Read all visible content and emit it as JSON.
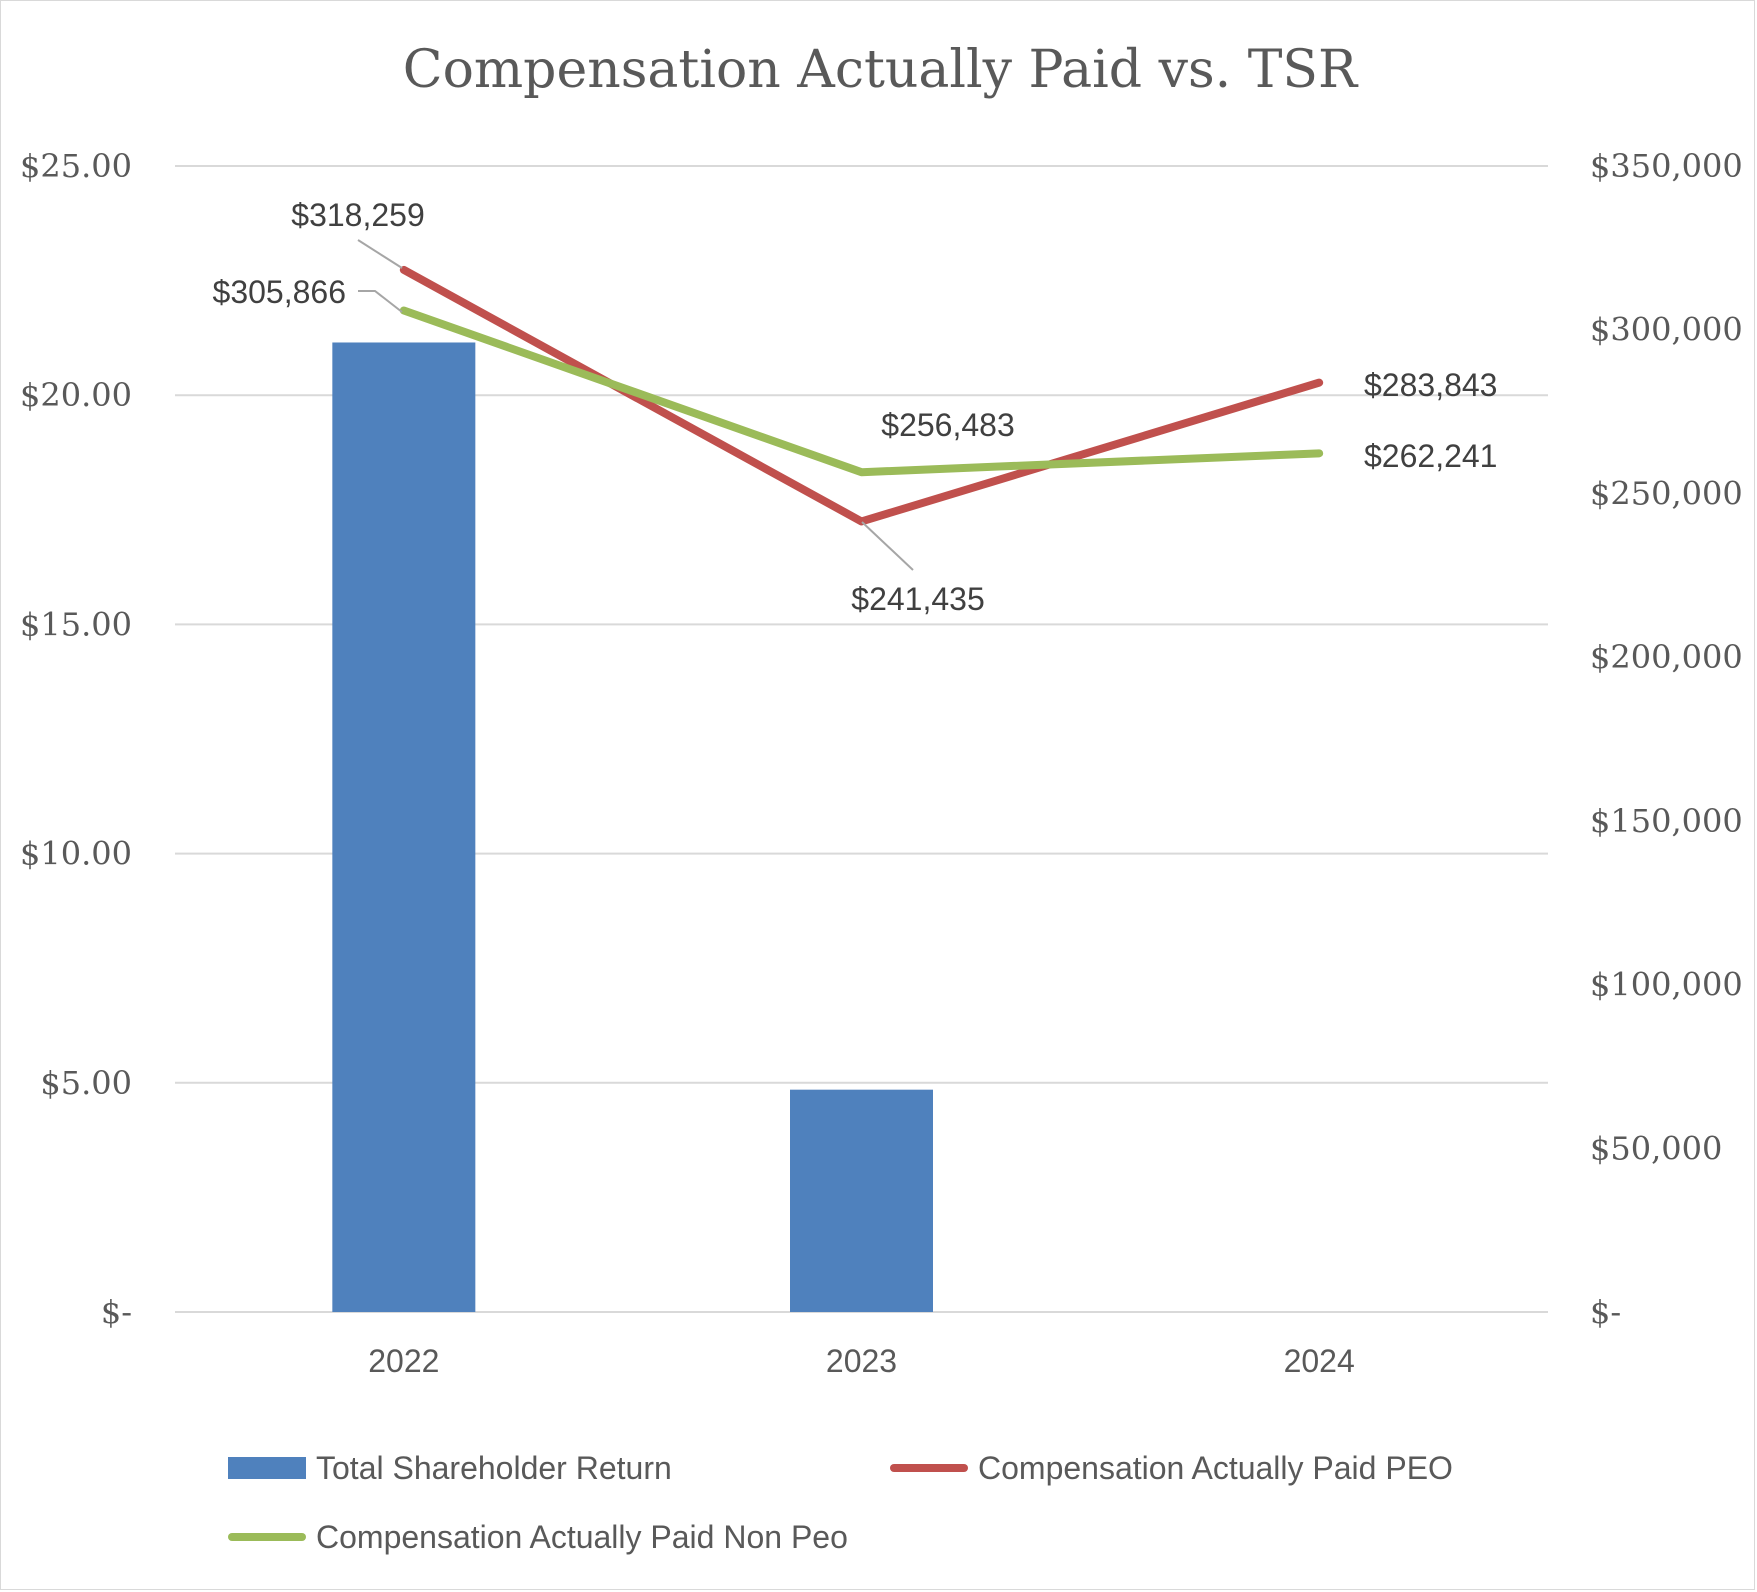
{
  "chart_data": {
    "type": "bar",
    "title": "Compensation Actually Paid vs. TSR",
    "categories": [
      "2022",
      "2023",
      "2024"
    ],
    "y_left": {
      "ylim": [
        0,
        25
      ],
      "ticks": [
        0,
        5,
        10,
        15,
        20,
        25
      ],
      "tick_labels": [
        "$-",
        "$5.00",
        "$10.00",
        "$15.00",
        "$20.00",
        "$25.00"
      ]
    },
    "y_right": {
      "ylim": [
        0,
        350000
      ],
      "ticks": [
        0,
        50000,
        100000,
        150000,
        200000,
        250000,
        300000,
        350000
      ],
      "tick_labels": [
        "$-",
        "$50,000",
        "$100,000",
        "$150,000",
        "$200,000",
        "$250,000",
        "$300,000",
        "$350,000"
      ]
    },
    "grid": true,
    "legend_position": "bottom",
    "series": [
      {
        "name": "Total Shareholder Return",
        "type": "bar",
        "axis": "left",
        "color": "#4f81bd",
        "values": [
          21.15,
          4.85,
          0
        ]
      },
      {
        "name": "Compensation Actually Paid PEO",
        "type": "line",
        "axis": "right",
        "color": "#c0504d",
        "values": [
          318259,
          241435,
          283843
        ],
        "labels": [
          "$318,259",
          "$241,435",
          "$283,843"
        ]
      },
      {
        "name": "Compensation Actually Paid Non Peo",
        "type": "line",
        "axis": "right",
        "color": "#9bbb59",
        "values": [
          305866,
          256483,
          262241
        ],
        "labels": [
          "$305,866",
          "$256,483",
          "$262,241"
        ]
      }
    ]
  }
}
